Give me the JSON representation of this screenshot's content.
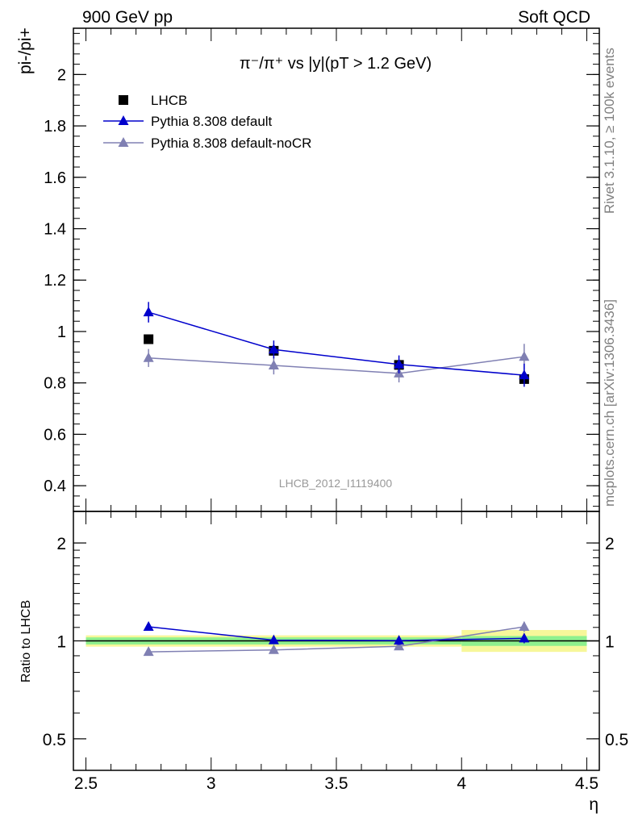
{
  "header": {
    "left": "900 GeV pp",
    "right": "Soft QCD"
  },
  "side_labels": {
    "rivet": "Rivet 3.1.10, ≥ 100k events",
    "mcplots": "mcplots.cern.ch [arXiv:1306.3436]"
  },
  "colors": {
    "data": "#000000",
    "default": "#0000cc",
    "noCR": "#8080b3",
    "band_inner": "#8ef08e",
    "band_outer": "#f7f79a"
  },
  "chart_data": [
    {
      "type": "scatter",
      "panel": "main",
      "title": "π⁻/π⁺ vs |y|(pT > 1.2 GeV)",
      "ylabel": "pi-/pi+",
      "analysis_id": "LHCB_2012_I1119400",
      "xlim": [
        2.45,
        4.55
      ],
      "ylim": [
        0.3,
        2.18
      ],
      "yticks": [
        0.4,
        0.6,
        0.8,
        1.0,
        1.2,
        1.4,
        1.6,
        1.8,
        2.0
      ],
      "ytick_labels": [
        "0.4",
        "0.6",
        "0.8",
        "1",
        "1.2",
        "1.4",
        "1.6",
        "1.8",
        "2"
      ],
      "legend": [
        "LHCB",
        "Pythia 8.308 default",
        "Pythia 8.308 default-noCR"
      ],
      "legend_position": "top-left",
      "series": [
        {
          "name": "LHCB",
          "marker": "square",
          "x": [
            2.75,
            3.25,
            3.75,
            4.25
          ],
          "y": [
            0.97,
            0.925,
            0.87,
            0.815
          ],
          "err": [
            0.005,
            0.01,
            0.01,
            0.01
          ]
        },
        {
          "name": "Pythia 8.308 default",
          "marker": "triangle",
          "line": true,
          "x": [
            2.75,
            3.25,
            3.75,
            4.25
          ],
          "y": [
            1.075,
            0.93,
            0.872,
            0.83
          ],
          "err": [
            0.04,
            0.035,
            0.035,
            0.045
          ]
        },
        {
          "name": "Pythia 8.308 default-noCR",
          "marker": "triangle",
          "line": true,
          "x": [
            2.75,
            3.25,
            3.75,
            4.25
          ],
          "y": [
            0.897,
            0.868,
            0.837,
            0.902
          ],
          "err": [
            0.035,
            0.035,
            0.035,
            0.05
          ]
        }
      ]
    },
    {
      "type": "scatter",
      "panel": "ratio",
      "ylabel": "Ratio to LHCB",
      "xlabel": "η",
      "log_y": true,
      "xlim": [
        2.45,
        4.55
      ],
      "ylim": [
        0.4,
        2.5
      ],
      "xticks": [
        2.5,
        3.0,
        3.5,
        4.0,
        4.5
      ],
      "xtick_labels": [
        "2.5",
        "3",
        "3.5",
        "4",
        "4.5"
      ],
      "yticks": [
        0.5,
        1.0,
        2.0
      ],
      "ytick_labels": [
        "0.5",
        "1",
        "2"
      ],
      "bands": [
        {
          "x": [
            2.5,
            4.0
          ],
          "inner": [
            0.975,
            1.025
          ],
          "outer": [
            0.96,
            1.04
          ]
        },
        {
          "x": [
            4.0,
            4.5
          ],
          "inner": [
            0.965,
            1.035
          ],
          "outer": [
            0.925,
            1.08
          ]
        }
      ],
      "series": [
        {
          "name": "Pythia 8.308 default",
          "x": [
            2.75,
            3.25,
            3.75,
            4.25
          ],
          "y": [
            1.105,
            1.005,
            1.002,
            1.018
          ],
          "err": [
            0.025,
            0.025,
            0.03,
            0.035
          ]
        },
        {
          "name": "Pythia 8.308 default-noCR",
          "x": [
            2.75,
            3.25,
            3.75,
            4.25
          ],
          "y": [
            0.925,
            0.938,
            0.962,
            1.105
          ],
          "err": [
            0.02,
            0.02,
            0.025,
            0.04
          ]
        }
      ]
    }
  ]
}
